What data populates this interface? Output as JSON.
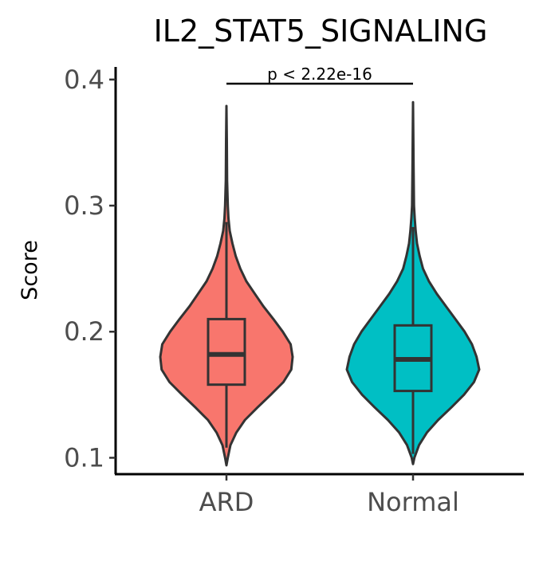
{
  "chart_data": {
    "type": "violin",
    "title": "IL2_STAT5_SIGNALING",
    "xlabel": "",
    "ylabel": "Score",
    "ylim": [
      0.087,
      0.41
    ],
    "yticks": [
      0.1,
      0.2,
      0.3,
      0.4
    ],
    "ytick_labels": [
      "0.1",
      "0.2",
      "0.3",
      "0.4"
    ],
    "categories": [
      "ARD",
      "Normal"
    ],
    "colors": [
      "#F8766D",
      "#00BFC4"
    ],
    "groups": [
      {
        "name": "ARD",
        "min": 0.094,
        "q1": 0.158,
        "median": 0.182,
        "q3": 0.21,
        "whisker_low": 0.108,
        "whisker_high": 0.287,
        "max": 0.379,
        "density": [
          [
            0.094,
            0.0
          ],
          [
            0.1,
            0.02
          ],
          [
            0.11,
            0.06
          ],
          [
            0.12,
            0.15
          ],
          [
            0.13,
            0.28
          ],
          [
            0.14,
            0.47
          ],
          [
            0.15,
            0.67
          ],
          [
            0.16,
            0.86
          ],
          [
            0.17,
            0.98
          ],
          [
            0.18,
            1.0
          ],
          [
            0.19,
            0.97
          ],
          [
            0.2,
            0.85
          ],
          [
            0.21,
            0.71
          ],
          [
            0.22,
            0.56
          ],
          [
            0.23,
            0.43
          ],
          [
            0.24,
            0.3
          ],
          [
            0.25,
            0.21
          ],
          [
            0.26,
            0.14
          ],
          [
            0.27,
            0.09
          ],
          [
            0.28,
            0.05
          ],
          [
            0.29,
            0.03
          ],
          [
            0.3,
            0.02
          ],
          [
            0.32,
            0.01
          ],
          [
            0.35,
            0.006
          ],
          [
            0.379,
            0.0
          ]
        ]
      },
      {
        "name": "Normal",
        "min": 0.095,
        "q1": 0.153,
        "median": 0.178,
        "q3": 0.205,
        "whisker_low": 0.103,
        "whisker_high": 0.283,
        "max": 0.382,
        "density": [
          [
            0.095,
            0.0
          ],
          [
            0.1,
            0.02
          ],
          [
            0.11,
            0.09
          ],
          [
            0.12,
            0.21
          ],
          [
            0.13,
            0.38
          ],
          [
            0.14,
            0.58
          ],
          [
            0.15,
            0.77
          ],
          [
            0.16,
            0.92
          ],
          [
            0.17,
            1.0
          ],
          [
            0.18,
            0.96
          ],
          [
            0.19,
            0.89
          ],
          [
            0.2,
            0.78
          ],
          [
            0.21,
            0.64
          ],
          [
            0.22,
            0.5
          ],
          [
            0.23,
            0.36
          ],
          [
            0.24,
            0.24
          ],
          [
            0.25,
            0.15
          ],
          [
            0.26,
            0.1
          ],
          [
            0.27,
            0.06
          ],
          [
            0.28,
            0.04
          ],
          [
            0.29,
            0.025
          ],
          [
            0.3,
            0.015
          ],
          [
            0.33,
            0.008
          ],
          [
            0.36,
            0.004
          ],
          [
            0.382,
            0.0
          ]
        ]
      }
    ],
    "annotation": "p < 2.22e-16",
    "grid": false,
    "legend": "none"
  }
}
